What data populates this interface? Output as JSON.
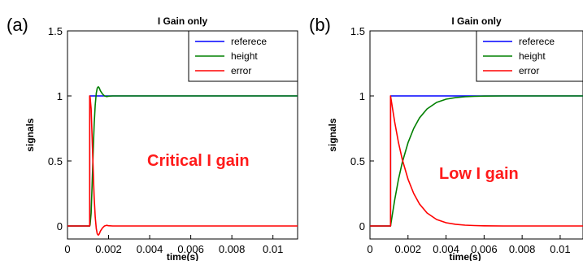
{
  "colors": {
    "referece": "#0000ff",
    "height": "#008000",
    "error": "#ff0000",
    "annotation": "#ff1a1a"
  },
  "chart_data": [
    {
      "type": "line",
      "panel_label": "(a)",
      "title": "I Gain only",
      "xlabel": "time(s)",
      "ylabel": "signals",
      "xlim": [
        0,
        0.0112
      ],
      "ylim": [
        -0.1,
        1.5
      ],
      "x_ticks": [
        "0",
        "0.002",
        "0.004",
        "0.006",
        "0.008",
        "0.01"
      ],
      "y_ticks": [
        "0",
        "0.5",
        "1",
        "1.5"
      ],
      "legend": [
        "referece",
        "height",
        "error"
      ],
      "legend_position": "top-right",
      "annotation": "Critical I gain",
      "series": [
        {
          "name": "referece",
          "x": [
            0,
            0.00108,
            0.00108,
            0.0112
          ],
          "y": [
            0,
            0,
            1,
            1
          ]
        },
        {
          "name": "height",
          "x": [
            0,
            0.00108,
            0.0011,
            0.00115,
            0.0012,
            0.00125,
            0.0013,
            0.00135,
            0.0014,
            0.00145,
            0.0015,
            0.00155,
            0.0016,
            0.0017,
            0.0018,
            0.0019,
            0.002,
            0.0022,
            0.0025,
            0.003,
            0.0112
          ],
          "y": [
            0,
            0,
            0.01,
            0.1,
            0.32,
            0.57,
            0.78,
            0.93,
            1.02,
            1.06,
            1.07,
            1.06,
            1.04,
            1.015,
            1.0,
            0.995,
            0.998,
            1.0,
            1.0,
            1.0,
            1.0
          ]
        },
        {
          "name": "error",
          "x": [
            0,
            0.00108,
            0.00108,
            0.0011,
            0.00115,
            0.0012,
            0.00125,
            0.0013,
            0.00135,
            0.0014,
            0.00145,
            0.0015,
            0.00155,
            0.0016,
            0.0017,
            0.0018,
            0.0019,
            0.002,
            0.0022,
            0.0025,
            0.003,
            0.0112
          ],
          "y": [
            0,
            0,
            1,
            0.99,
            0.9,
            0.68,
            0.43,
            0.22,
            0.07,
            -0.02,
            -0.06,
            -0.07,
            -0.06,
            -0.04,
            -0.015,
            0.0,
            0.005,
            0.002,
            0.0,
            0.0,
            0.0,
            0.0
          ]
        }
      ]
    },
    {
      "type": "line",
      "panel_label": "(b)",
      "title": "I Gain only",
      "xlabel": "time(s)",
      "ylabel": "signals",
      "xlim": [
        0,
        0.0112
      ],
      "ylim": [
        -0.1,
        1.5
      ],
      "x_ticks": [
        "0",
        "0.002",
        "0.004",
        "0.006",
        "0.008",
        "0.01"
      ],
      "y_ticks": [
        "0",
        "0.5",
        "1",
        "1.5"
      ],
      "legend": [
        "referece",
        "height",
        "error"
      ],
      "legend_position": "top-right",
      "annotation": "Low I gain",
      "series": [
        {
          "name": "referece",
          "x": [
            0,
            0.00108,
            0.00108,
            0.0112
          ],
          "y": [
            0,
            0,
            1,
            1
          ]
        },
        {
          "name": "height",
          "x": [
            0,
            0.00108,
            0.0013,
            0.0015,
            0.0017,
            0.002,
            0.0023,
            0.0026,
            0.003,
            0.0035,
            0.004,
            0.0045,
            0.005,
            0.0055,
            0.006,
            0.007,
            0.008,
            0.0112
          ],
          "y": [
            0,
            0,
            0.2,
            0.36,
            0.49,
            0.64,
            0.75,
            0.83,
            0.9,
            0.95,
            0.975,
            0.987,
            0.994,
            0.997,
            0.999,
            1.0,
            1.0,
            1.0
          ]
        },
        {
          "name": "error",
          "x": [
            0,
            0.00108,
            0.00108,
            0.0013,
            0.0015,
            0.0017,
            0.002,
            0.0023,
            0.0026,
            0.003,
            0.0035,
            0.004,
            0.0045,
            0.005,
            0.0055,
            0.006,
            0.007,
            0.008,
            0.0112
          ],
          "y": [
            0,
            0,
            1,
            0.8,
            0.64,
            0.51,
            0.36,
            0.25,
            0.17,
            0.1,
            0.05,
            0.025,
            0.013,
            0.006,
            0.003,
            0.001,
            0.0,
            0.0,
            0.0
          ]
        }
      ]
    }
  ]
}
